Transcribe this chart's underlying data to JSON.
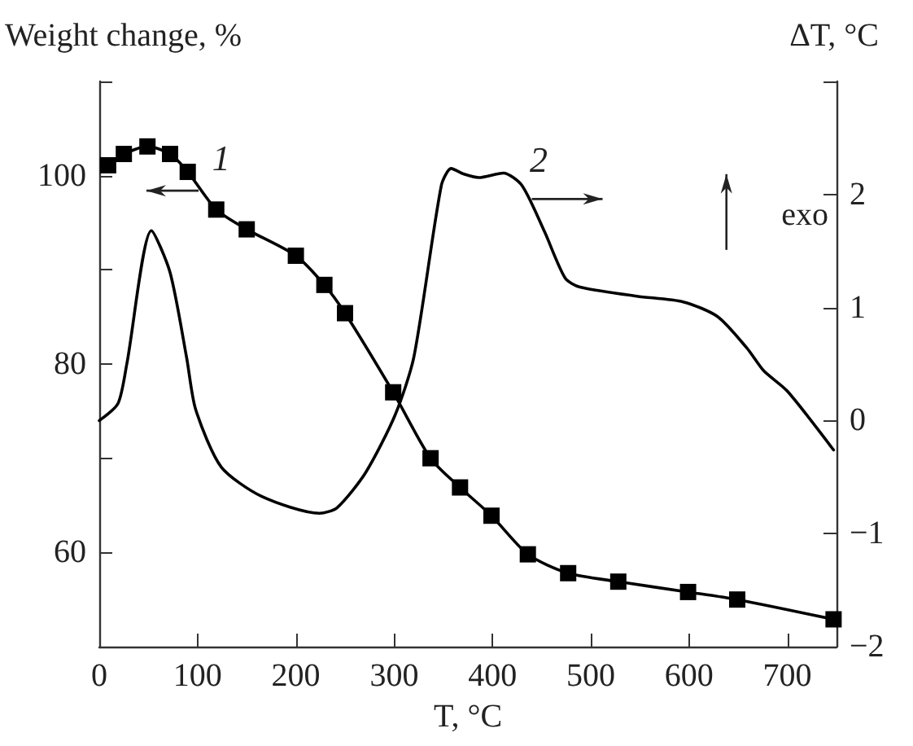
{
  "chart_data": {
    "type": "line",
    "xlabel": "T, °C",
    "ylabel": "Weight change, %",
    "y2label": "ΔT, °C",
    "annotations": [
      "exo"
    ],
    "xlim": [
      0,
      750
    ],
    "xticks": [
      0,
      100,
      200,
      300,
      400,
      500,
      600,
      700
    ],
    "ylim": [
      50,
      110
    ],
    "yticks": [
      60,
      {
        "value": 70,
        "label": null
      },
      80,
      {
        "value": 90,
        "label": null
      },
      100,
      {
        "value": 110,
        "label": null
      }
    ],
    "y2lim": [
      -2,
      3
    ],
    "y2ticks": [
      -2,
      -1,
      0,
      1,
      2,
      {
        "value": 3,
        "label": null
      }
    ],
    "grid": false,
    "legend": false,
    "series": [
      {
        "name": "1",
        "color": "#000000",
        "marker": "square",
        "x": [
          9,
          25,
          49,
          72,
          90,
          119,
          150,
          200,
          229,
          250,
          299,
          337,
          367,
          399,
          436,
          477,
          528,
          599,
          649,
          747
        ],
        "values": [
          101.1,
          102.3,
          103.1,
          102.3,
          100.4,
          96.4,
          94.3,
          91.5,
          88.4,
          85.4,
          77.0,
          70.0,
          66.9,
          63.9,
          59.8,
          57.8,
          56.9,
          55.8,
          55.0,
          52.9
        ]
      },
      {
        "name": "2",
        "color": "#000000",
        "marker": "none",
        "axis": "y2",
        "x": [
          0,
          19,
          28,
          53,
          72,
          89,
          98,
          124,
          165,
          224,
          242,
          271,
          301,
          320,
          348,
          358,
          371,
          386,
          411,
          430,
          453,
          474,
          489,
          547,
          594,
          629,
          659,
          676,
          700,
          747
        ],
        "values": [
          0.0,
          0.15,
          0.5,
          1.68,
          1.31,
          0.55,
          0.1,
          -0.41,
          -0.67,
          -0.82,
          -0.77,
          -0.46,
          0.05,
          0.56,
          2.08,
          2.23,
          2.18,
          2.15,
          2.19,
          2.08,
          1.67,
          1.26,
          1.18,
          1.1,
          1.05,
          0.92,
          0.64,
          0.44,
          0.26,
          -0.26
        ]
      }
    ]
  }
}
